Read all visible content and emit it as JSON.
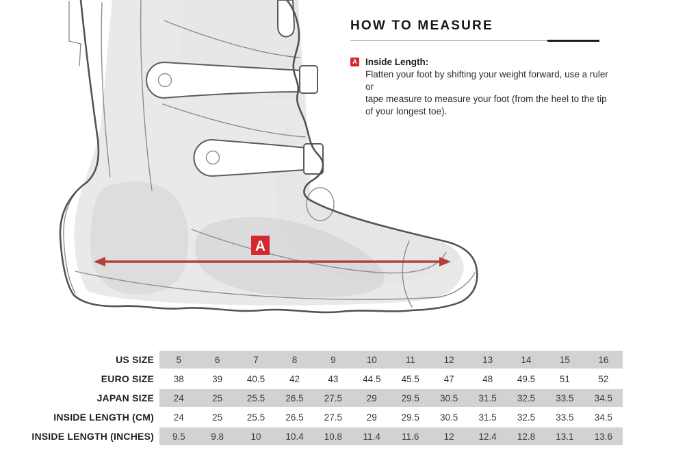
{
  "how_to_measure": {
    "title": "HOW TO MEASURE",
    "items": [
      {
        "marker": "A",
        "title": "Inside Length:",
        "lines": [
          "Flatten your foot by shifting your weight forward, use a ruler or",
          "tape measure to measure your foot (from the heel to the tip",
          "of your longest toe)."
        ]
      }
    ]
  },
  "diagram": {
    "subject": "motocross-boot-side-view",
    "marker": "A",
    "measurement": "inside-length",
    "marker_color": "#d7272e",
    "arrow_color": "#b2403c"
  },
  "size_table": {
    "band_color": "#d2d2d2",
    "rows": [
      {
        "label": "US SIZE",
        "shaded": true,
        "values": [
          "5",
          "6",
          "7",
          "8",
          "9",
          "10",
          "11",
          "12",
          "13",
          "14",
          "15",
          "16"
        ]
      },
      {
        "label": "EURO SIZE",
        "shaded": false,
        "values": [
          "38",
          "39",
          "40.5",
          "42",
          "43",
          "44.5",
          "45.5",
          "47",
          "48",
          "49.5",
          "51",
          "52"
        ]
      },
      {
        "label": "JAPAN SIZE",
        "shaded": true,
        "values": [
          "24",
          "25",
          "25.5",
          "26.5",
          "27.5",
          "29",
          "29.5",
          "30.5",
          "31.5",
          "32.5",
          "33.5",
          "34.5"
        ]
      },
      {
        "label": "INSIDE LENGTH (CM)",
        "shaded": false,
        "values": [
          "24",
          "25",
          "25.5",
          "26.5",
          "27.5",
          "29",
          "29.5",
          "30.5",
          "31.5",
          "32.5",
          "33.5",
          "34.5"
        ]
      },
      {
        "label": "INSIDE LENGTH (INCHES)",
        "shaded": true,
        "values": [
          "9.5",
          "9.8",
          "10",
          "10.4",
          "10.8",
          "11.4",
          "11.6",
          "12",
          "12.4",
          "12.8",
          "13.1",
          "13.6"
        ]
      }
    ]
  }
}
